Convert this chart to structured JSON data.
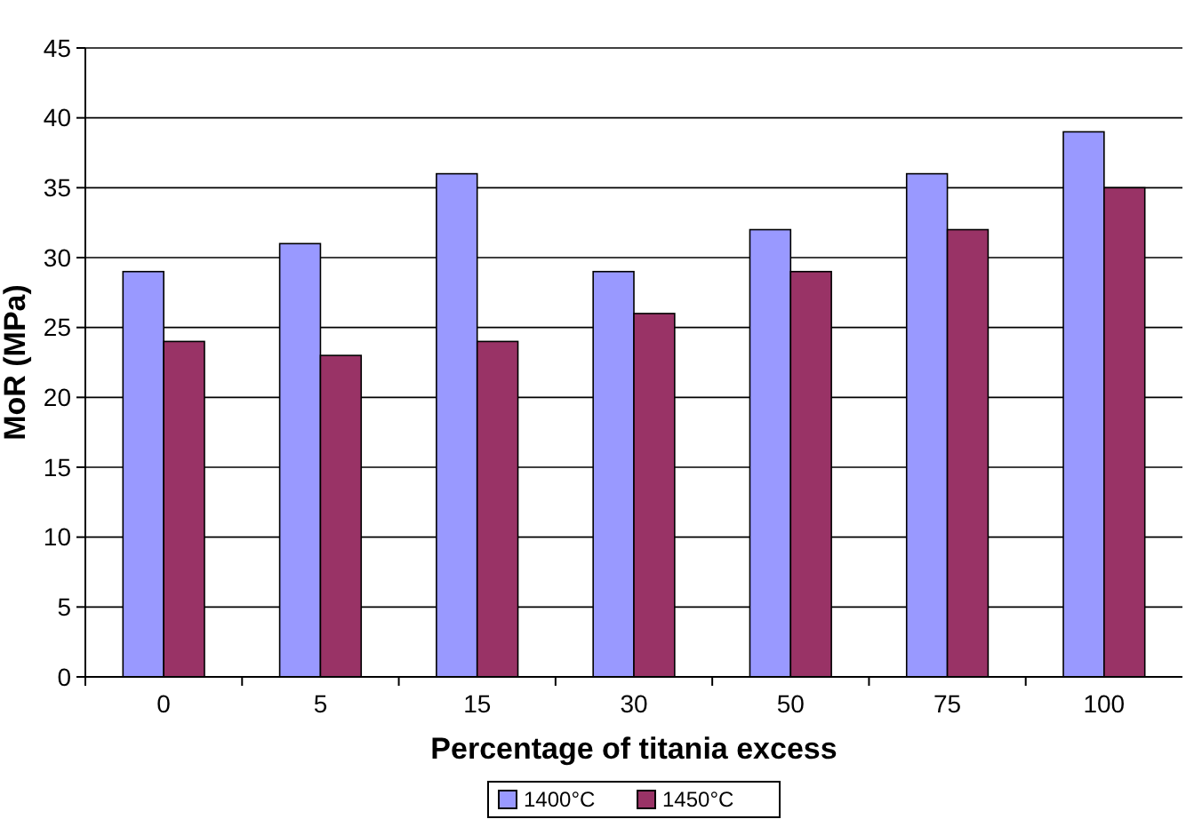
{
  "chart_data": {
    "type": "bar",
    "xlabel": "Percentage of titania excess",
    "ylabel": "MoR (MPa)",
    "categories": [
      "0",
      "5",
      "15",
      "30",
      "50",
      "75",
      "100"
    ],
    "series": [
      {
        "name": "1400°C",
        "color": "#9999ff",
        "values": [
          29,
          31,
          36,
          29,
          32,
          36,
          39
        ]
      },
      {
        "name": "1450°C",
        "color": "#993366",
        "values": [
          24,
          23,
          24,
          26,
          29,
          32,
          35
        ]
      }
    ],
    "ylim": [
      0,
      45
    ],
    "yticks": [
      0,
      5,
      10,
      15,
      20,
      25,
      30,
      35,
      40,
      45
    ],
    "grid": "y",
    "legend": "bottom"
  }
}
